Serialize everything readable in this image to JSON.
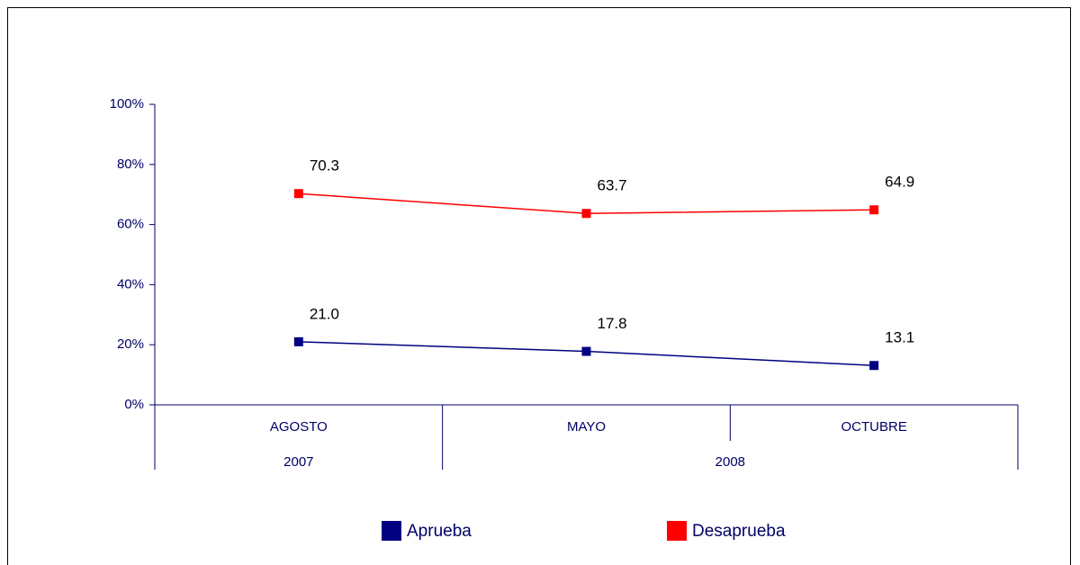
{
  "chart_data": {
    "type": "line",
    "categories": [
      "AGOSTO",
      "MAYO",
      "OCTUBRE"
    ],
    "groups": [
      {
        "label": "2007",
        "span": 1
      },
      {
        "label": "2008",
        "span": 2
      }
    ],
    "series": [
      {
        "name": "Aprueba",
        "color": "#000080",
        "values": [
          21.0,
          17.8,
          13.1
        ],
        "value_labels": [
          "21.0",
          "17.8",
          "13.1"
        ]
      },
      {
        "name": "Desaprueba",
        "color": "#ff0000",
        "values": [
          70.3,
          63.7,
          64.9
        ]
      }
    ],
    "ylim": [
      0,
      100
    ],
    "yticks": [
      {
        "value": 0,
        "label": "0%"
      },
      {
        "value": 20,
        "label": "20%"
      },
      {
        "value": 40,
        "label": "40%"
      },
      {
        "value": 60,
        "label": "60%"
      },
      {
        "value": 80,
        "label": "80%"
      },
      {
        "value": 100,
        "label": "100%"
      }
    ],
    "legend": "bottom"
  }
}
